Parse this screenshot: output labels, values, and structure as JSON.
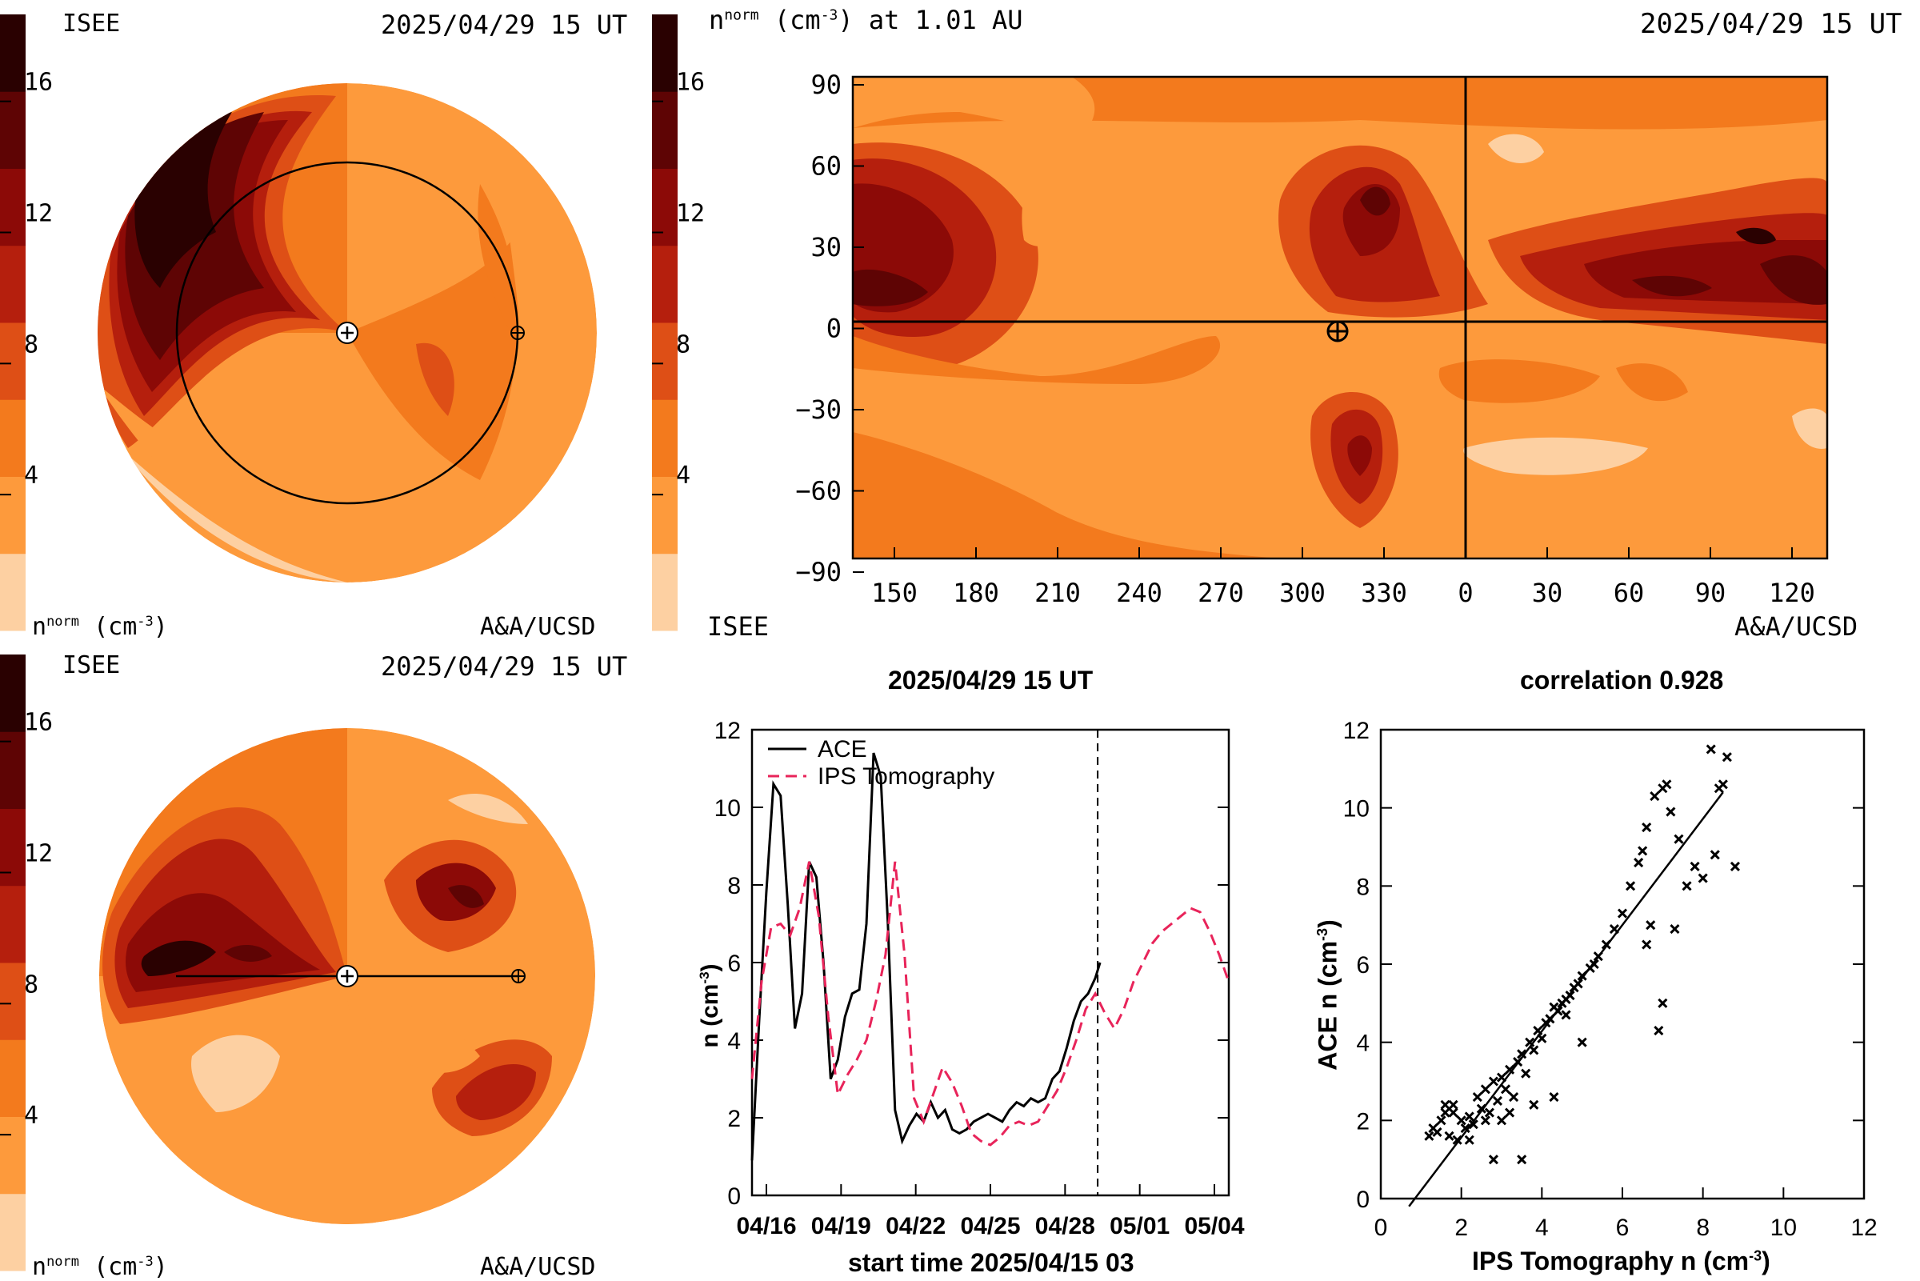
{
  "palette": [
    "#fdd0a2",
    "#fd9a3c",
    "#f37a1d",
    "#de4f16",
    "#b51f0d",
    "#8c0a07",
    "#5e0404",
    "#2a0101"
  ],
  "colorbar": {
    "ticks": [
      "4",
      "8",
      "12",
      "16"
    ]
  },
  "top_left": {
    "org": "ISEE",
    "time": "2025/04/29 15 UT",
    "unit_base": "n",
    "unit_sup": "norm",
    "unit_rest": " (cm",
    "unit_exp": "-3",
    "unit_close": ")",
    "credit": "A&A/UCSD"
  },
  "bottom_left": {
    "org": "ISEE",
    "time": "2025/04/29 15 UT",
    "unit_base": "n",
    "unit_sup": "norm",
    "unit_rest": " (cm",
    "unit_exp": "-3",
    "unit_close": ")",
    "credit": "A&A/UCSD"
  },
  "map_panel": {
    "title_base": "n",
    "title_sup": "norm",
    "title_rest": " (cm",
    "title_exp": "-3",
    "title_close": ") at 1.01 AU",
    "time": "2025/04/29 15 UT",
    "org": "ISEE",
    "credit": "A&A/UCSD",
    "yticks": [
      "90",
      "60",
      "30",
      "0",
      "−30",
      "−60",
      "−90"
    ],
    "xticks": [
      "150",
      "180",
      "210",
      "240",
      "270",
      "300",
      "330",
      "0",
      "30",
      "60",
      "90",
      "120"
    ]
  },
  "chart_data": [
    {
      "type": "line",
      "title": "2025/04/29 15 UT",
      "xlabel": "start time 2025/04/15 03",
      "ylabel_base": "n (cm",
      "ylabel_exp": "-3",
      "ylabel_close": ")",
      "xticks": [
        "04/16",
        "04/19",
        "04/22",
        "04/25",
        "04/28",
        "05/01",
        "05/04"
      ],
      "yticks": [
        "0",
        "2",
        "4",
        "6",
        "8",
        "10",
        "12"
      ],
      "xlim": [
        0,
        20
      ],
      "ylim": [
        0,
        12
      ],
      "now_marker": 14.5,
      "series": [
        {
          "name": "ACE",
          "color": "#000000",
          "style": "solid",
          "x": [
            0.0,
            0.3,
            0.6,
            0.9,
            1.2,
            1.5,
            1.8,
            2.1,
            2.4,
            2.7,
            3.0,
            3.3,
            3.6,
            3.9,
            4.2,
            4.5,
            4.8,
            5.1,
            5.4,
            5.7,
            6.0,
            6.3,
            6.6,
            6.9,
            7.2,
            7.5,
            7.8,
            8.1,
            8.4,
            8.7,
            9.0,
            9.3,
            9.6,
            9.9,
            10.2,
            10.5,
            10.8,
            11.1,
            11.4,
            11.7,
            12.0,
            12.3,
            12.6,
            12.9,
            13.2,
            13.5,
            13.8,
            14.1,
            14.4,
            14.6
          ],
          "y": [
            0.9,
            4.5,
            7.8,
            10.6,
            10.3,
            7.5,
            4.3,
            5.2,
            8.6,
            8.2,
            6.0,
            3.0,
            3.5,
            4.6,
            5.2,
            5.3,
            7.0,
            11.4,
            10.8,
            7.0,
            2.2,
            1.4,
            1.8,
            2.1,
            1.9,
            2.4,
            2.0,
            2.2,
            1.7,
            1.6,
            1.7,
            1.9,
            2.0,
            2.1,
            2.0,
            1.9,
            2.2,
            2.4,
            2.3,
            2.5,
            2.4,
            2.5,
            3.0,
            3.2,
            3.8,
            4.5,
            5.0,
            5.2,
            5.6,
            6.0
          ]
        },
        {
          "name": "IPS Tomography",
          "color": "#e8245a",
          "style": "dashed",
          "x": [
            0.0,
            0.4,
            0.8,
            1.2,
            1.6,
            2.0,
            2.4,
            2.8,
            3.2,
            3.6,
            4.0,
            4.4,
            4.8,
            5.2,
            5.6,
            6.0,
            6.4,
            6.8,
            7.2,
            7.6,
            8.0,
            8.4,
            8.8,
            9.2,
            9.6,
            10.0,
            10.4,
            10.8,
            11.2,
            11.6,
            12.0,
            12.4,
            12.8,
            13.2,
            13.6,
            14.0,
            14.4,
            14.8,
            15.2,
            15.6,
            16.0,
            16.4,
            16.8,
            17.2,
            17.6,
            18.0,
            18.4,
            18.8,
            19.2,
            19.6,
            20.0
          ],
          "y": [
            3.0,
            5.5,
            6.9,
            7.0,
            6.7,
            7.4,
            8.6,
            7.2,
            4.6,
            2.6,
            3.1,
            3.5,
            4.0,
            5.0,
            6.2,
            8.6,
            6.2,
            2.5,
            1.9,
            2.6,
            3.3,
            2.9,
            2.3,
            1.6,
            1.4,
            1.3,
            1.5,
            1.8,
            1.9,
            1.8,
            1.9,
            2.3,
            2.7,
            3.3,
            4.0,
            4.8,
            5.2,
            4.7,
            4.3,
            4.8,
            5.5,
            6.0,
            6.5,
            6.8,
            7.0,
            7.2,
            7.4,
            7.3,
            6.8,
            6.2,
            5.5
          ]
        }
      ]
    },
    {
      "type": "scatter",
      "title": "correlation 0.928",
      "xlabel_base": "IPS Tomography n (cm",
      "xlabel_exp": "-3",
      "xlabel_close": ")",
      "ylabel_base": "ACE n (cm",
      "ylabel_exp": "-3",
      "ylabel_close": ")",
      "xticks": [
        "0",
        "2",
        "4",
        "6",
        "8",
        "10",
        "12"
      ],
      "yticks": [
        "0",
        "2",
        "4",
        "6",
        "8",
        "10",
        "12"
      ],
      "xlim": [
        0,
        12
      ],
      "ylim": [
        0,
        12
      ],
      "fit_line": {
        "x": [
          0.7,
          8.5
        ],
        "y": [
          -0.2,
          10.4
        ]
      },
      "points": [
        [
          1.2,
          1.6
        ],
        [
          1.3,
          1.8
        ],
        [
          1.4,
          1.7
        ],
        [
          1.5,
          2.0
        ],
        [
          1.6,
          2.4
        ],
        [
          1.7,
          1.6
        ],
        [
          1.8,
          2.2
        ],
        [
          1.9,
          1.5
        ],
        [
          2.0,
          2.0
        ],
        [
          2.1,
          1.8
        ],
        [
          2.2,
          2.1
        ],
        [
          2.3,
          1.9
        ],
        [
          2.4,
          2.6
        ],
        [
          2.5,
          2.3
        ],
        [
          2.6,
          2.8
        ],
        [
          2.7,
          2.2
        ],
        [
          2.8,
          3.0
        ],
        [
          2.9,
          2.5
        ],
        [
          3.0,
          3.1
        ],
        [
          3.1,
          2.8
        ],
        [
          3.2,
          3.3
        ],
        [
          3.3,
          2.6
        ],
        [
          3.4,
          3.5
        ],
        [
          3.5,
          3.7
        ],
        [
          3.6,
          3.2
        ],
        [
          3.7,
          4.0
        ],
        [
          3.8,
          3.8
        ],
        [
          3.9,
          4.3
        ],
        [
          4.0,
          4.1
        ],
        [
          4.1,
          4.5
        ],
        [
          4.2,
          4.6
        ],
        [
          4.3,
          4.9
        ],
        [
          4.4,
          4.8
        ],
        [
          4.5,
          5.0
        ],
        [
          4.6,
          5.1
        ],
        [
          4.7,
          5.2
        ],
        [
          4.8,
          5.4
        ],
        [
          4.9,
          5.5
        ],
        [
          5.0,
          5.7
        ],
        [
          5.2,
          5.9
        ],
        [
          5.4,
          6.2
        ],
        [
          5.6,
          6.5
        ],
        [
          5.8,
          6.9
        ],
        [
          6.0,
          7.3
        ],
        [
          6.2,
          8.0
        ],
        [
          6.4,
          8.6
        ],
        [
          6.6,
          9.5
        ],
        [
          6.8,
          10.3
        ],
        [
          7.0,
          10.5
        ],
        [
          7.2,
          9.9
        ],
        [
          7.4,
          9.2
        ],
        [
          7.6,
          8.0
        ],
        [
          7.8,
          8.5
        ],
        [
          8.0,
          8.2
        ],
        [
          8.2,
          11.5
        ],
        [
          8.4,
          10.5
        ],
        [
          8.6,
          11.3
        ],
        [
          8.8,
          8.5
        ],
        [
          6.7,
          7.0
        ],
        [
          6.9,
          4.3
        ],
        [
          7.0,
          5.0
        ],
        [
          6.6,
          6.5
        ],
        [
          7.3,
          6.9
        ],
        [
          2.8,
          1.0
        ],
        [
          3.5,
          1.0
        ],
        [
          4.3,
          2.6
        ],
        [
          5.0,
          4.0
        ],
        [
          3.0,
          2.0
        ],
        [
          2.2,
          1.5
        ],
        [
          1.8,
          2.4
        ],
        [
          1.6,
          2.2
        ],
        [
          2.6,
          2.0
        ],
        [
          3.2,
          2.2
        ],
        [
          3.8,
          2.4
        ],
        [
          4.6,
          4.7
        ],
        [
          5.3,
          6.0
        ],
        [
          6.5,
          8.9
        ],
        [
          7.1,
          10.6
        ],
        [
          8.3,
          8.8
        ],
        [
          8.5,
          10.6
        ]
      ]
    }
  ]
}
